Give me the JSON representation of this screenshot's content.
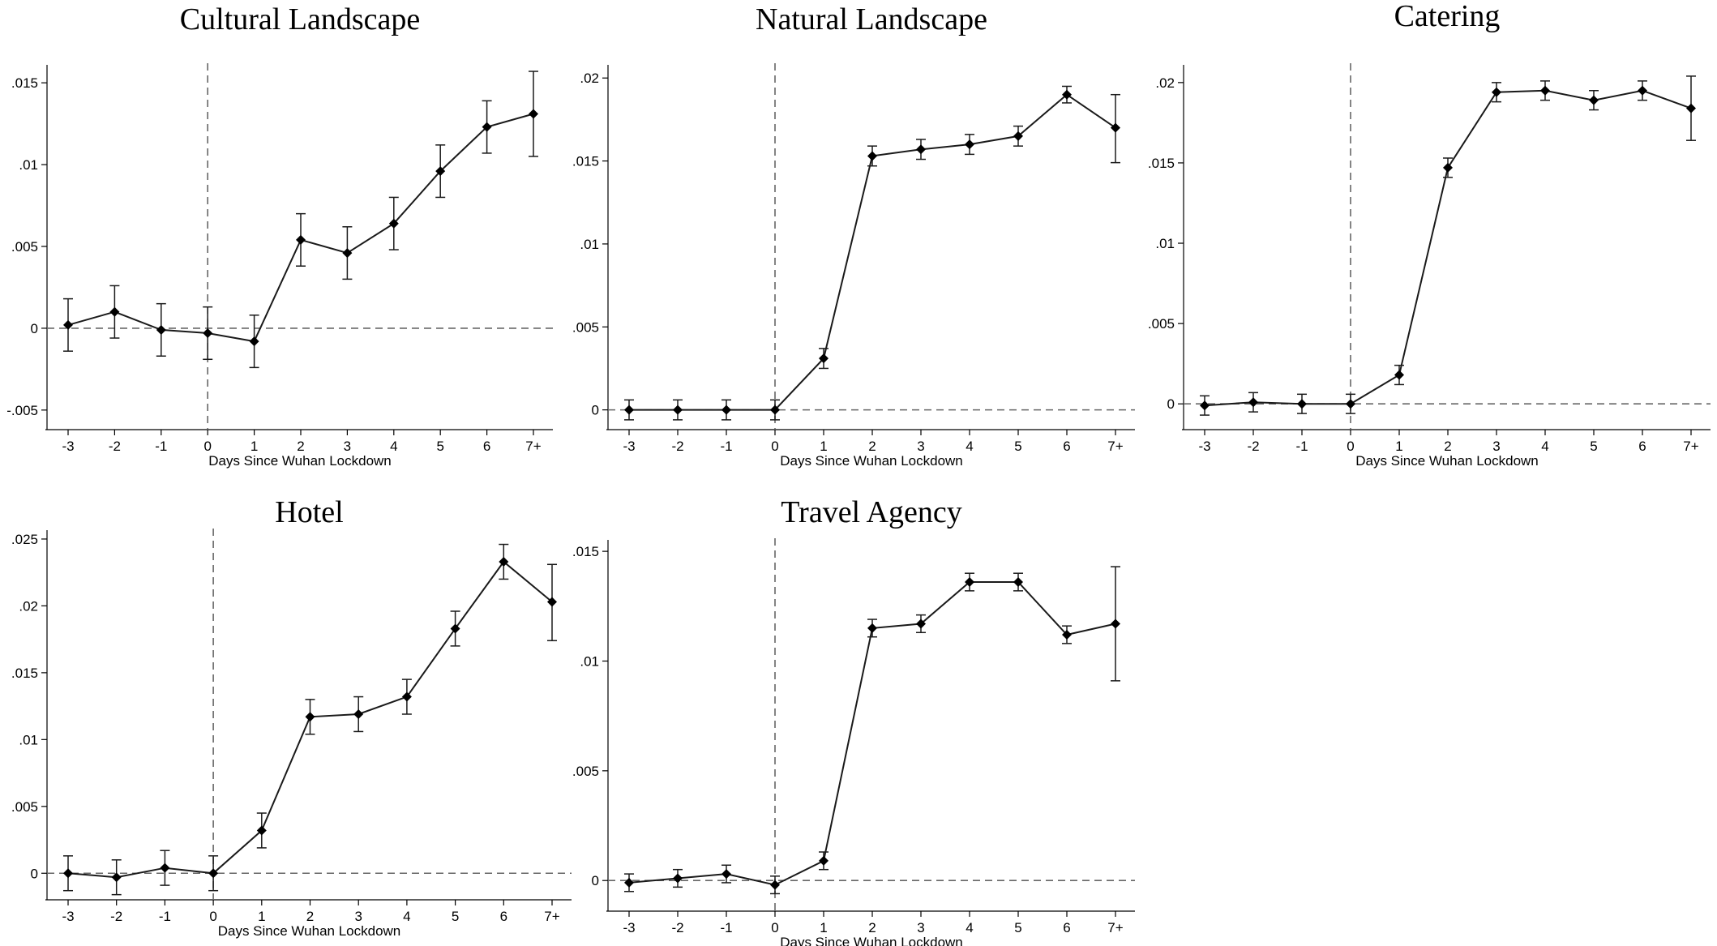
{
  "chart_data": [
    {
      "type": "line",
      "title": "Cultural Landscape",
      "xlabel": "Days Since Wuhan Lockdown",
      "ylabel": "",
      "categories": [
        "-3",
        "-2",
        "-1",
        "0",
        "1",
        "2",
        "3",
        "4",
        "5",
        "6",
        "7+"
      ],
      "yticks": [
        "-.005",
        "0",
        ".005",
        ".01",
        ".015"
      ],
      "ylim": [
        -0.0058,
        0.0158
      ],
      "values": [
        0.0002,
        0.001,
        -0.0001,
        -0.0003,
        -0.0008,
        0.0054,
        0.0046,
        0.0064,
        0.0096,
        0.0123,
        0.0131
      ],
      "ci_low": [
        -0.0014,
        -0.0006,
        -0.0017,
        -0.0019,
        -0.0024,
        0.0038,
        0.003,
        0.0048,
        0.008,
        0.0107,
        0.0105
      ],
      "ci_high": [
        0.0018,
        0.0026,
        0.0015,
        0.0013,
        0.0008,
        0.007,
        0.0062,
        0.008,
        0.0112,
        0.0139,
        0.0157
      ],
      "hline": 0,
      "vline": "0",
      "grid": false
    },
    {
      "type": "line",
      "title": "Natural Landscape",
      "xlabel": "Days Since Wuhan Lockdown",
      "ylabel": "",
      "categories": [
        "-3",
        "-2",
        "-1",
        "0",
        "1",
        "2",
        "3",
        "4",
        "5",
        "6",
        "7+"
      ],
      "yticks": [
        "0",
        ".005",
        ".01",
        ".015",
        ".02"
      ],
      "ylim": [
        -0.0008,
        0.0205
      ],
      "values": [
        0.0,
        0.0,
        0.0,
        0.0,
        0.0031,
        0.0153,
        0.0157,
        0.016,
        0.0165,
        0.019,
        0.017
      ],
      "ci_low": [
        -0.0006,
        -0.0006,
        -0.0006,
        -0.0006,
        0.0025,
        0.0147,
        0.0151,
        0.0154,
        0.0159,
        0.0185,
        0.0149
      ],
      "ci_high": [
        0.0006,
        0.0006,
        0.0006,
        0.0006,
        0.0037,
        0.0159,
        0.0163,
        0.0166,
        0.0171,
        0.0195,
        0.019
      ],
      "hline": 0,
      "vline": "0",
      "grid": false
    },
    {
      "type": "line",
      "title": "Catering",
      "xlabel": "Days Since Wuhan Lockdown",
      "ylabel": "",
      "categories": [
        "-3",
        "-2",
        "-1",
        "0",
        "1",
        "2",
        "3",
        "4",
        "5",
        "6",
        "7+"
      ],
      "yticks": [
        "0",
        ".005",
        ".01",
        ".015",
        ".02"
      ],
      "ylim": [
        -0.0012,
        0.0208
      ],
      "values": [
        -0.0001,
        0.0001,
        0.0,
        0.0,
        0.0018,
        0.0147,
        0.0194,
        0.0195,
        0.0189,
        0.0195,
        0.0184
      ],
      "ci_low": [
        -0.0007,
        -0.0005,
        -0.0006,
        -0.0006,
        0.0012,
        0.0141,
        0.0188,
        0.0189,
        0.0183,
        0.0189,
        0.0164
      ],
      "ci_high": [
        0.0005,
        0.0007,
        0.0006,
        0.0006,
        0.0024,
        0.0153,
        0.02,
        0.0201,
        0.0195,
        0.0201,
        0.0204
      ],
      "hline": 0,
      "vline": "0",
      "grid": false
    },
    {
      "type": "line",
      "title": "Hotel",
      "xlabel": "Days Since Wuhan Lockdown",
      "ylabel": "",
      "categories": [
        "-3",
        "-2",
        "-1",
        "0",
        "1",
        "2",
        "3",
        "4",
        "5",
        "6",
        "7+"
      ],
      "yticks": [
        "0",
        ".005",
        ".01",
        ".015",
        ".02",
        ".025"
      ],
      "ylim": [
        -0.0015,
        0.0253
      ],
      "values": [
        0.0,
        -0.0003,
        0.0004,
        0.0,
        0.0032,
        0.0117,
        0.0119,
        0.0132,
        0.0183,
        0.0233,
        0.0203
      ],
      "ci_low": [
        -0.0013,
        -0.0016,
        -0.0009,
        -0.0013,
        0.0019,
        0.0104,
        0.0106,
        0.0119,
        0.017,
        0.022,
        0.0174
      ],
      "ci_high": [
        0.0013,
        0.001,
        0.0017,
        0.0013,
        0.0045,
        0.013,
        0.0132,
        0.0145,
        0.0196,
        0.0246,
        0.0231
      ],
      "hline": 0,
      "vline": "0",
      "grid": false
    },
    {
      "type": "line",
      "title": "Travel Agency",
      "xlabel": "Days Since Wuhan Lockdown",
      "ylabel": "",
      "categories": [
        "-3",
        "-2",
        "-1",
        "0",
        "1",
        "2",
        "3",
        "4",
        "5",
        "6",
        "7+"
      ],
      "yticks": [
        "0",
        ".005",
        ".01",
        ".015"
      ],
      "ylim": [
        -0.0011,
        0.0153
      ],
      "values": [
        -0.0001,
        0.0001,
        0.0003,
        -0.0002,
        0.0009,
        0.0115,
        0.0117,
        0.0136,
        0.0136,
        0.0112,
        0.0117
      ],
      "ci_low": [
        -0.0005,
        -0.0003,
        -0.0001,
        -0.0006,
        0.0005,
        0.0111,
        0.0113,
        0.0132,
        0.0132,
        0.0108,
        0.0091
      ],
      "ci_high": [
        0.0003,
        0.0005,
        0.0007,
        0.0002,
        0.0013,
        0.0119,
        0.0121,
        0.014,
        0.014,
        0.0116,
        0.0143
      ],
      "hline": 0,
      "vline": "0",
      "grid": false
    }
  ]
}
